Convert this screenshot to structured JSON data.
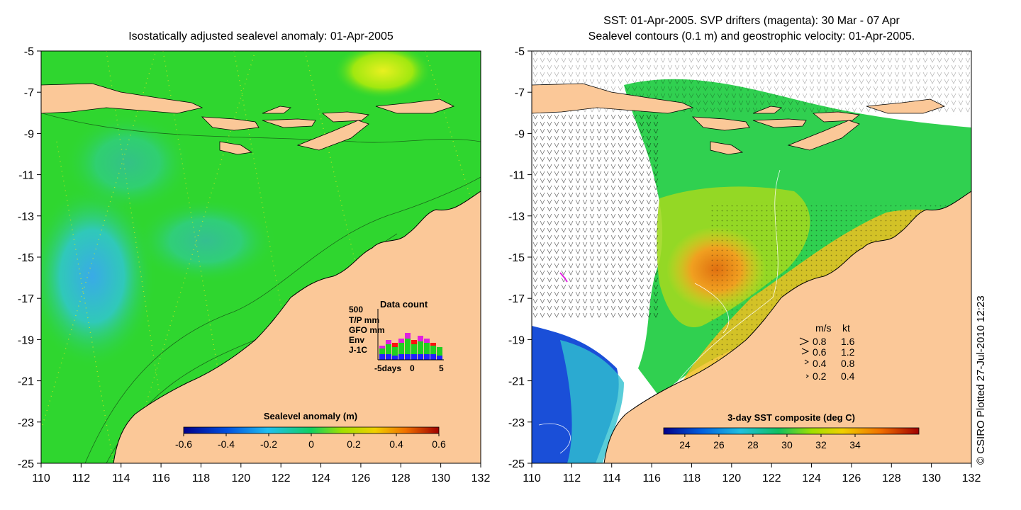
{
  "left_panel": {
    "title": "Isostatically adjusted sealevel anomaly: 01-Apr-2005",
    "x_ticks": [
      "110",
      "112",
      "114",
      "116",
      "118",
      "120",
      "122",
      "124",
      "126",
      "128",
      "130",
      "132"
    ],
    "y_ticks": [
      "-5",
      "-7",
      "-9",
      "-11",
      "-13",
      "-15",
      "-17",
      "-19",
      "-21",
      "-23",
      "-25"
    ],
    "colorbar": {
      "label": "Sealevel anomaly (m)",
      "ticks": [
        "-0.6",
        "-0.4",
        "-0.2",
        "0",
        "0.2",
        "0.4",
        "0.6"
      ]
    },
    "data_count": {
      "title": "Data count",
      "y_max_label": "500",
      "legend": [
        {
          "name": "T/P mm",
          "color": "#e020e0"
        },
        {
          "name": "GFO mm",
          "color": "#ff1010"
        },
        {
          "name": "Env",
          "color": "#20d020"
        },
        {
          "name": "J-1C",
          "color": "#2020ff"
        }
      ],
      "x_labels": [
        "-5days",
        "0",
        "5"
      ]
    }
  },
  "right_panel": {
    "title_line1": "SST: 01-Apr-2005. SVP drifters (magenta): 30 Mar - 07 Apr",
    "title_line2": "Sealevel contours (0.1 m) and geostrophic velocity: 01-Apr-2005.",
    "x_ticks": [
      "110",
      "112",
      "114",
      "116",
      "118",
      "120",
      "122",
      "124",
      "126",
      "128",
      "130",
      "132"
    ],
    "y_ticks": [
      "-5",
      "-7",
      "-9",
      "-11",
      "-13",
      "-15",
      "-17",
      "-19",
      "-21",
      "-23",
      "-25"
    ],
    "colorbar": {
      "label": "3-day SST composite (deg C)",
      "ticks": [
        "24",
        "26",
        "28",
        "30",
        "32",
        "34"
      ]
    },
    "velocity_legend": {
      "header_ms": "m/s",
      "header_kt": "kt",
      "rows": [
        {
          "ms": "0.8",
          "kt": "1.6"
        },
        {
          "ms": "0.6",
          "kt": "1.2"
        },
        {
          "ms": "0.4",
          "kt": "0.8"
        },
        {
          "ms": "0.2",
          "kt": "0.4"
        }
      ]
    }
  },
  "credit": "© CSIRO Plotted 27-Jul-2010 12:23",
  "colors": {
    "land": "#fbc898",
    "ocean_green": "#2fd62f",
    "ocean_blue": "#36b6e8",
    "sst_orange": "#ef8a10",
    "sst_blue": "#1a4fd8"
  }
}
